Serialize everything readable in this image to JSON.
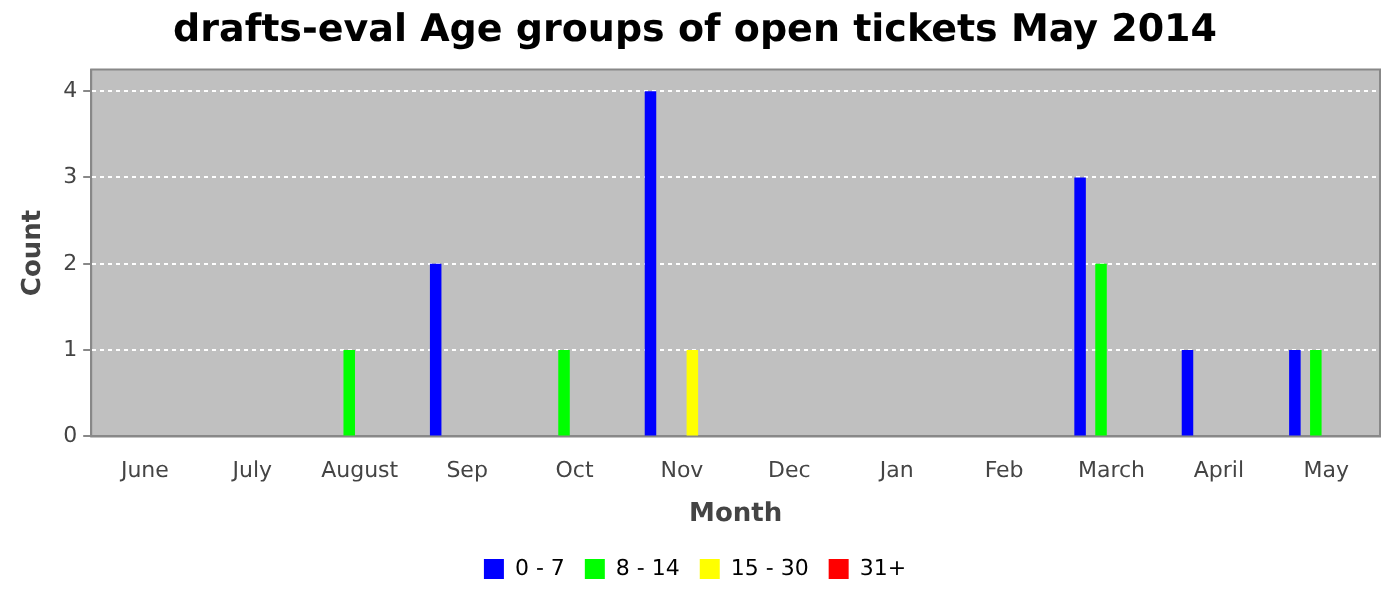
{
  "chart_data": {
    "type": "bar",
    "title": "drafts-eval Age groups of open tickets May 2014",
    "xlabel": "Month",
    "ylabel": "Count",
    "categories": [
      "June",
      "July",
      "August",
      "Sep",
      "Oct",
      "Nov",
      "Dec",
      "Jan",
      "Feb",
      "March",
      "April",
      "May"
    ],
    "series": [
      {
        "name": "0 - 7",
        "color": "#0000ff",
        "values": [
          0,
          0,
          0,
          2,
          0,
          4,
          0,
          0,
          0,
          3,
          1,
          1
        ]
      },
      {
        "name": "8 - 14",
        "color": "#00ff00",
        "values": [
          0,
          0,
          1,
          0,
          1,
          0,
          0,
          0,
          0,
          2,
          0,
          1
        ]
      },
      {
        "name": "15 - 30",
        "color": "#ffff00",
        "values": [
          0,
          0,
          0,
          0,
          0,
          1,
          0,
          0,
          0,
          0,
          0,
          0
        ]
      },
      {
        "name": "31+",
        "color": "#ff0000",
        "values": [
          0,
          0,
          0,
          0,
          0,
          0,
          0,
          0,
          0,
          0,
          0,
          0
        ]
      }
    ],
    "ylim": [
      0,
      4.25
    ],
    "yticks": [
      0,
      1,
      2,
      3,
      4
    ],
    "grid": "y",
    "legend": "bottom"
  }
}
